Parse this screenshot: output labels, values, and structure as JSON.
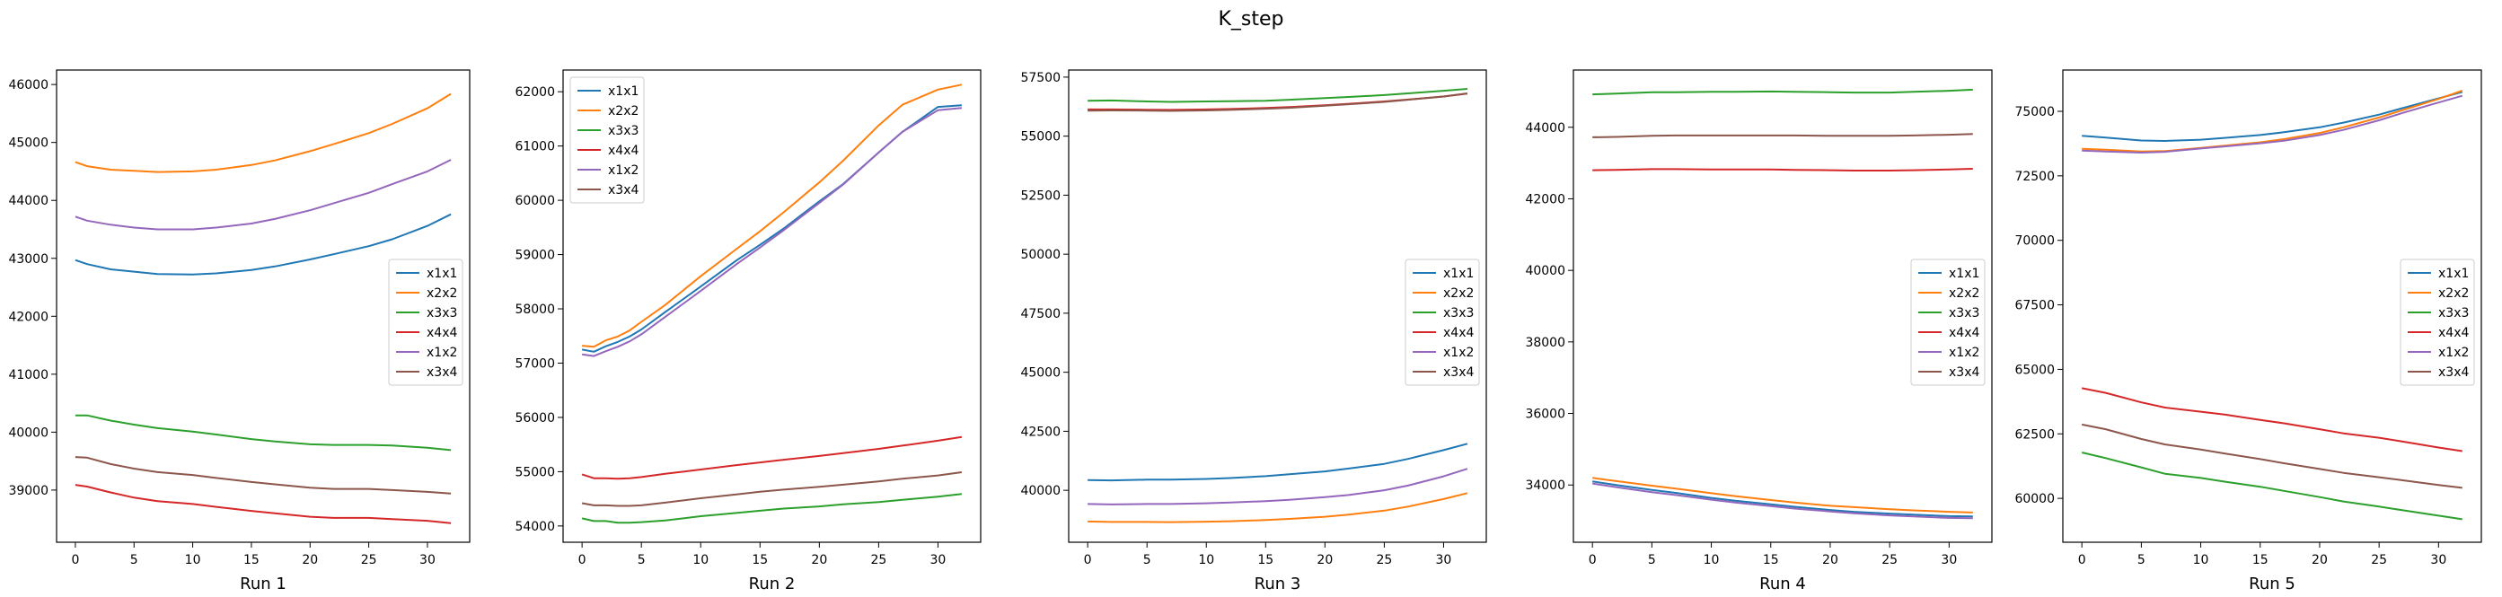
{
  "figure": {
    "title": "K_step"
  },
  "colors": {
    "x1x1": "#1f77b4",
    "x2x2": "#ff7f0e",
    "x3x3": "#2ca02c",
    "x4x4": "#d62728",
    "x1x2": "#9467bd",
    "x3x4": "#8c564b"
  },
  "chart_data": [
    {
      "type": "line",
      "xlabel": "Run 1",
      "xlim": [
        -1.6,
        33.6
      ],
      "ylim": [
        38100,
        46250
      ],
      "xticks": [
        0,
        5,
        10,
        15,
        20,
        25,
        30
      ],
      "yticks": [
        39000,
        40000,
        41000,
        42000,
        43000,
        44000,
        45000,
        46000
      ],
      "legend": "center-right",
      "x": [
        0,
        1,
        3,
        5,
        7,
        10,
        12,
        15,
        17,
        20,
        22,
        25,
        27,
        30,
        32
      ],
      "series": [
        {
          "name": "x1x1",
          "values": [
            42970,
            42900,
            42810,
            42770,
            42730,
            42720,
            42740,
            42800,
            42860,
            42980,
            43070,
            43210,
            43330,
            43560,
            43760
          ]
        },
        {
          "name": "x2x2",
          "values": [
            44660,
            44590,
            44530,
            44510,
            44490,
            44500,
            44530,
            44610,
            44690,
            44850,
            44970,
            45160,
            45320,
            45590,
            45840
          ]
        },
        {
          "name": "x3x3",
          "values": [
            40290,
            40290,
            40200,
            40130,
            40070,
            40010,
            39960,
            39880,
            39840,
            39790,
            39780,
            39780,
            39770,
            39730,
            39690
          ]
        },
        {
          "name": "x4x4",
          "values": [
            39090,
            39060,
            38960,
            38870,
            38810,
            38760,
            38710,
            38640,
            38600,
            38540,
            38520,
            38520,
            38500,
            38470,
            38430
          ]
        },
        {
          "name": "x1x2",
          "values": [
            43720,
            43650,
            43580,
            43530,
            43500,
            43500,
            43530,
            43600,
            43680,
            43830,
            43950,
            44130,
            44280,
            44500,
            44700
          ]
        },
        {
          "name": "x3x4",
          "values": [
            39570,
            39560,
            39450,
            39370,
            39310,
            39260,
            39210,
            39140,
            39100,
            39040,
            39020,
            39020,
            39000,
            38970,
            38940
          ]
        }
      ]
    },
    {
      "type": "line",
      "xlabel": "Run 2",
      "xlim": [
        -1.6,
        33.6
      ],
      "ylim": [
        53700,
        62400
      ],
      "xticks": [
        0,
        5,
        10,
        15,
        20,
        25,
        30
      ],
      "yticks": [
        54000,
        55000,
        56000,
        57000,
        58000,
        59000,
        60000,
        61000,
        62000
      ],
      "legend": "upper-left",
      "x": [
        0,
        1,
        2,
        3,
        4,
        5,
        7,
        10,
        13,
        15,
        17,
        20,
        22,
        25,
        27,
        30,
        32
      ],
      "series": [
        {
          "name": "x1x1",
          "values": [
            57250,
            57210,
            57310,
            57390,
            57490,
            57620,
            57940,
            58410,
            58890,
            59180,
            59480,
            59980,
            60300,
            60880,
            61260,
            61720,
            61750
          ]
        },
        {
          "name": "x2x2",
          "values": [
            57320,
            57300,
            57420,
            57490,
            57600,
            57760,
            58070,
            58600,
            59100,
            59430,
            59780,
            60330,
            60730,
            61380,
            61760,
            62040,
            62130
          ]
        },
        {
          "name": "x3x3",
          "values": [
            54140,
            54090,
            54090,
            54060,
            54060,
            54070,
            54100,
            54180,
            54240,
            54280,
            54320,
            54360,
            54400,
            54440,
            54480,
            54540,
            54590
          ]
        },
        {
          "name": "x4x4",
          "values": [
            54950,
            54880,
            54880,
            54870,
            54880,
            54900,
            54960,
            55040,
            55120,
            55170,
            55220,
            55290,
            55340,
            55420,
            55480,
            55570,
            55640
          ]
        },
        {
          "name": "x1x2",
          "values": [
            57160,
            57130,
            57220,
            57300,
            57400,
            57530,
            57850,
            58330,
            58820,
            59130,
            59450,
            59950,
            60290,
            60880,
            61260,
            61660,
            61700
          ]
        },
        {
          "name": "x3x4",
          "values": [
            54420,
            54380,
            54380,
            54370,
            54370,
            54380,
            54430,
            54510,
            54580,
            54630,
            54670,
            54720,
            54760,
            54820,
            54870,
            54930,
            54990
          ]
        }
      ]
    },
    {
      "type": "line",
      "xlabel": "Run 3",
      "xlim": [
        -1.6,
        33.6
      ],
      "ylim": [
        37800,
        57800
      ],
      "xticks": [
        0,
        5,
        10,
        15,
        20,
        25,
        30
      ],
      "yticks": [
        40000,
        42500,
        45000,
        47500,
        50000,
        52500,
        55000,
        57500
      ],
      "legend": "center-right",
      "x": [
        0,
        2,
        5,
        7,
        10,
        12,
        15,
        17,
        20,
        22,
        25,
        27,
        30,
        32
      ],
      "series": [
        {
          "name": "x1x1",
          "values": [
            40430,
            40420,
            40450,
            40450,
            40480,
            40520,
            40600,
            40680,
            40800,
            40920,
            41120,
            41330,
            41700,
            41970
          ]
        },
        {
          "name": "x2x2",
          "values": [
            38680,
            38660,
            38660,
            38650,
            38670,
            38690,
            38740,
            38790,
            38880,
            38970,
            39140,
            39310,
            39630,
            39880
          ]
        },
        {
          "name": "x3x3",
          "values": [
            56500,
            56510,
            56470,
            56450,
            56470,
            56480,
            56500,
            56540,
            56610,
            56660,
            56740,
            56810,
            56920,
            57000
          ]
        },
        {
          "name": "x4x4",
          "values": [
            56130,
            56130,
            56120,
            56110,
            56130,
            56150,
            56190,
            56230,
            56310,
            56370,
            56470,
            56550,
            56680,
            56800
          ]
        },
        {
          "name": "x1x2",
          "values": [
            39420,
            39400,
            39420,
            39420,
            39450,
            39480,
            39540,
            39600,
            39710,
            39800,
            40000,
            40200,
            40590,
            40910
          ]
        },
        {
          "name": "x3x4",
          "values": [
            56080,
            56090,
            56080,
            56070,
            56090,
            56110,
            56160,
            56200,
            56290,
            56350,
            56450,
            56540,
            56680,
            56810
          ]
        }
      ]
    },
    {
      "type": "line",
      "xlabel": "Run 4",
      "xlim": [
        -1.6,
        33.6
      ],
      "ylim": [
        32400,
        45600
      ],
      "xticks": [
        0,
        5,
        10,
        15,
        20,
        25,
        30
      ],
      "yticks": [
        34000,
        36000,
        38000,
        40000,
        42000,
        44000
      ],
      "legend": "center-right",
      "x": [
        0,
        2,
        5,
        7,
        10,
        12,
        15,
        17,
        20,
        22,
        25,
        27,
        30,
        32
      ],
      "series": [
        {
          "name": "x1x1",
          "values": [
            34100,
            34000,
            33860,
            33780,
            33640,
            33560,
            33460,
            33390,
            33300,
            33250,
            33200,
            33170,
            33130,
            33120
          ]
        },
        {
          "name": "x2x2",
          "values": [
            34200,
            34110,
            33980,
            33900,
            33770,
            33690,
            33580,
            33510,
            33420,
            33380,
            33320,
            33290,
            33250,
            33230
          ]
        },
        {
          "name": "x3x3",
          "values": [
            44920,
            44940,
            44980,
            44980,
            44990,
            44990,
            45000,
            44990,
            44980,
            44970,
            44970,
            44990,
            45020,
            45050
          ]
        },
        {
          "name": "x4x4",
          "values": [
            42800,
            42810,
            42830,
            42830,
            42820,
            42820,
            42820,
            42810,
            42800,
            42790,
            42790,
            42800,
            42820,
            42840
          ]
        },
        {
          "name": "x1x2",
          "values": [
            34040,
            33940,
            33800,
            33720,
            33590,
            33510,
            33410,
            33340,
            33260,
            33210,
            33150,
            33120,
            33080,
            33070
          ]
        },
        {
          "name": "x3x4",
          "values": [
            43720,
            43730,
            43760,
            43770,
            43770,
            43770,
            43770,
            43770,
            43760,
            43760,
            43760,
            43770,
            43790,
            43810
          ]
        }
      ]
    },
    {
      "type": "line",
      "xlabel": "Run 5",
      "xlim": [
        -1.6,
        33.6
      ],
      "ylim": [
        58300,
        76600
      ],
      "xticks": [
        0,
        5,
        10,
        15,
        20,
        25,
        30
      ],
      "yticks": [
        60000,
        62500,
        65000,
        67500,
        70000,
        72500,
        75000
      ],
      "legend": "center-right",
      "x": [
        0,
        2,
        5,
        7,
        10,
        12,
        15,
        17,
        20,
        22,
        25,
        27,
        30,
        32
      ],
      "series": [
        {
          "name": "x1x1",
          "values": [
            74050,
            73980,
            73870,
            73850,
            73900,
            73970,
            74080,
            74190,
            74380,
            74560,
            74870,
            75130,
            75500,
            75750
          ]
        },
        {
          "name": "x2x2",
          "values": [
            73550,
            73510,
            73440,
            73460,
            73580,
            73670,
            73800,
            73920,
            74160,
            74380,
            74760,
            75050,
            75480,
            75800
          ]
        },
        {
          "name": "x3x3",
          "values": [
            61780,
            61560,
            61200,
            60950,
            60790,
            60650,
            60450,
            60290,
            60050,
            59880,
            59680,
            59540,
            59330,
            59190
          ]
        },
        {
          "name": "x4x4",
          "values": [
            64270,
            64090,
            63720,
            63520,
            63360,
            63250,
            63040,
            62910,
            62680,
            62520,
            62350,
            62200,
            61970,
            61830
          ]
        },
        {
          "name": "x1x2",
          "values": [
            73480,
            73440,
            73400,
            73430,
            73560,
            73640,
            73760,
            73860,
            74080,
            74280,
            74650,
            74940,
            75340,
            75600
          ]
        },
        {
          "name": "x3x4",
          "values": [
            62860,
            62680,
            62300,
            62090,
            61890,
            61740,
            61520,
            61360,
            61140,
            60990,
            60820,
            60700,
            60520,
            60410
          ]
        }
      ]
    }
  ]
}
